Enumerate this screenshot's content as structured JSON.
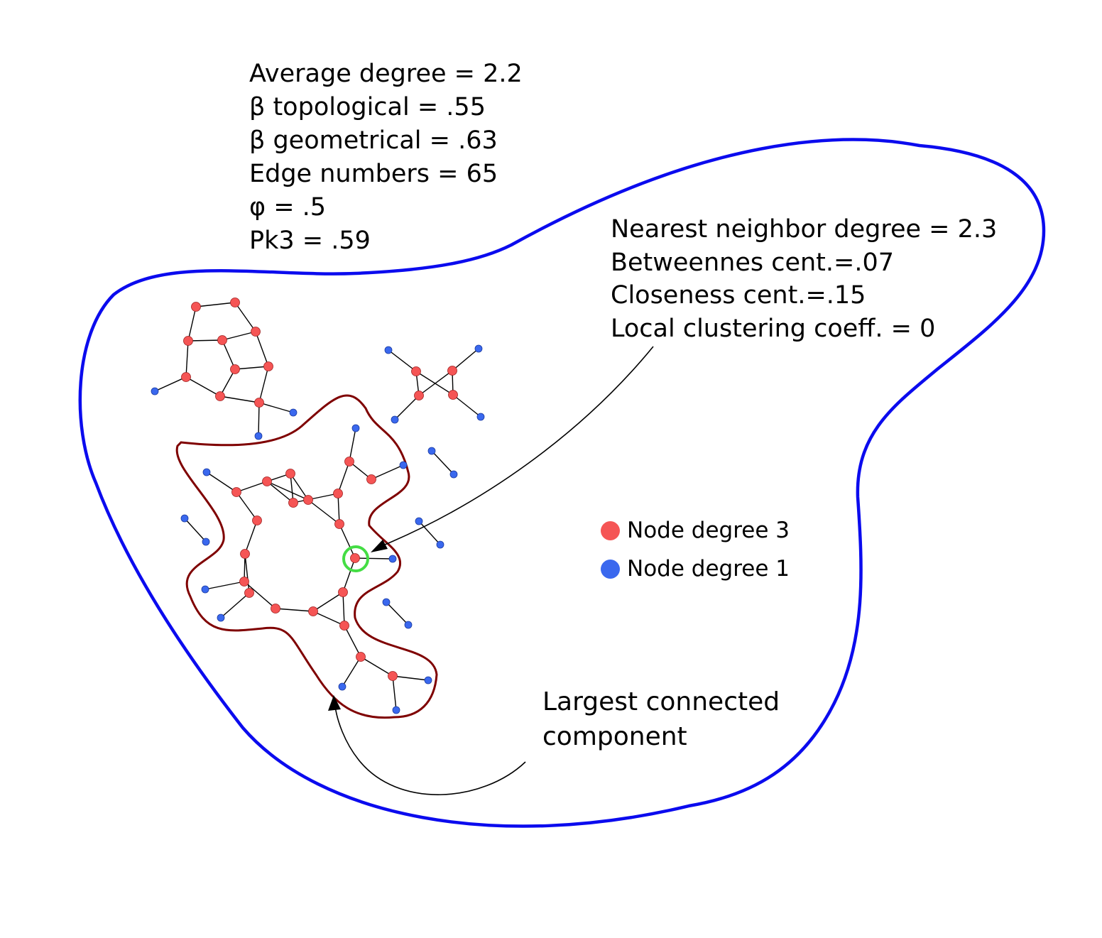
{
  "colors": {
    "node_degree_3": "#f55555",
    "node_degree_1": "#3a68ee",
    "network_boundary": "#0b0bee",
    "lcc_boundary": "#7f0000",
    "selected_ring": "#44dd44",
    "edge": "#000000"
  },
  "global_stats": [
    "Average degree = 2.2",
    "β topological = .55",
    "β geometrical = .63",
    "Edge numbers = 65",
    "φ = .5",
    "Pk3 = .59"
  ],
  "node_stats": [
    "Nearest neighbor degree = 2.3",
    "Betweennes cent.=.07",
    "Closeness cent.=.15",
    "Local clustering coeff. = 0"
  ],
  "legend": [
    {
      "label": "Node degree 3",
      "color": "#f55555"
    },
    {
      "label": "Node degree 1",
      "color": "#3a68ee"
    }
  ],
  "lcc_label": [
    "Largest connected",
    "component"
  ]
}
